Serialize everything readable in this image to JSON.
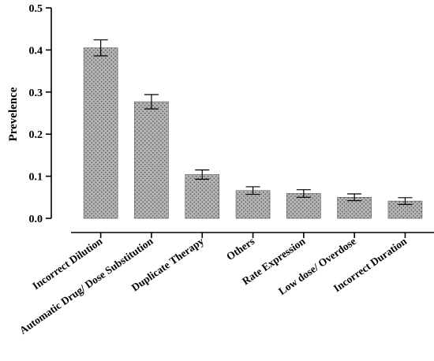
{
  "chart_data": {
    "type": "bar",
    "title": "",
    "xlabel": "",
    "ylabel": "Prevelence",
    "ylim": [
      0,
      0.5
    ],
    "yticks": [
      0.0,
      0.1,
      0.2,
      0.3,
      0.4,
      0.5
    ],
    "ytick_labels": [
      "0.0",
      "0.1",
      "0.2",
      "0.3",
      "0.4",
      "0.5"
    ],
    "grid": false,
    "legend": "none",
    "categories": [
      "Incorrect Dilution",
      "Automatic Drug/ Dose Substitution",
      "Duplicate Therapy",
      "Others",
      "Rate Expression",
      "Low dose/ Overdose",
      "Incorrect Duration"
    ],
    "values": [
      0.405,
      0.277,
      0.104,
      0.066,
      0.059,
      0.05,
      0.041
    ],
    "error": [
      0.019,
      0.017,
      0.011,
      0.009,
      0.009,
      0.008,
      0.008
    ],
    "bar_fill": "#b3b3b3",
    "dot_color": "#4a4a4a",
    "edge_color": "#000000"
  }
}
